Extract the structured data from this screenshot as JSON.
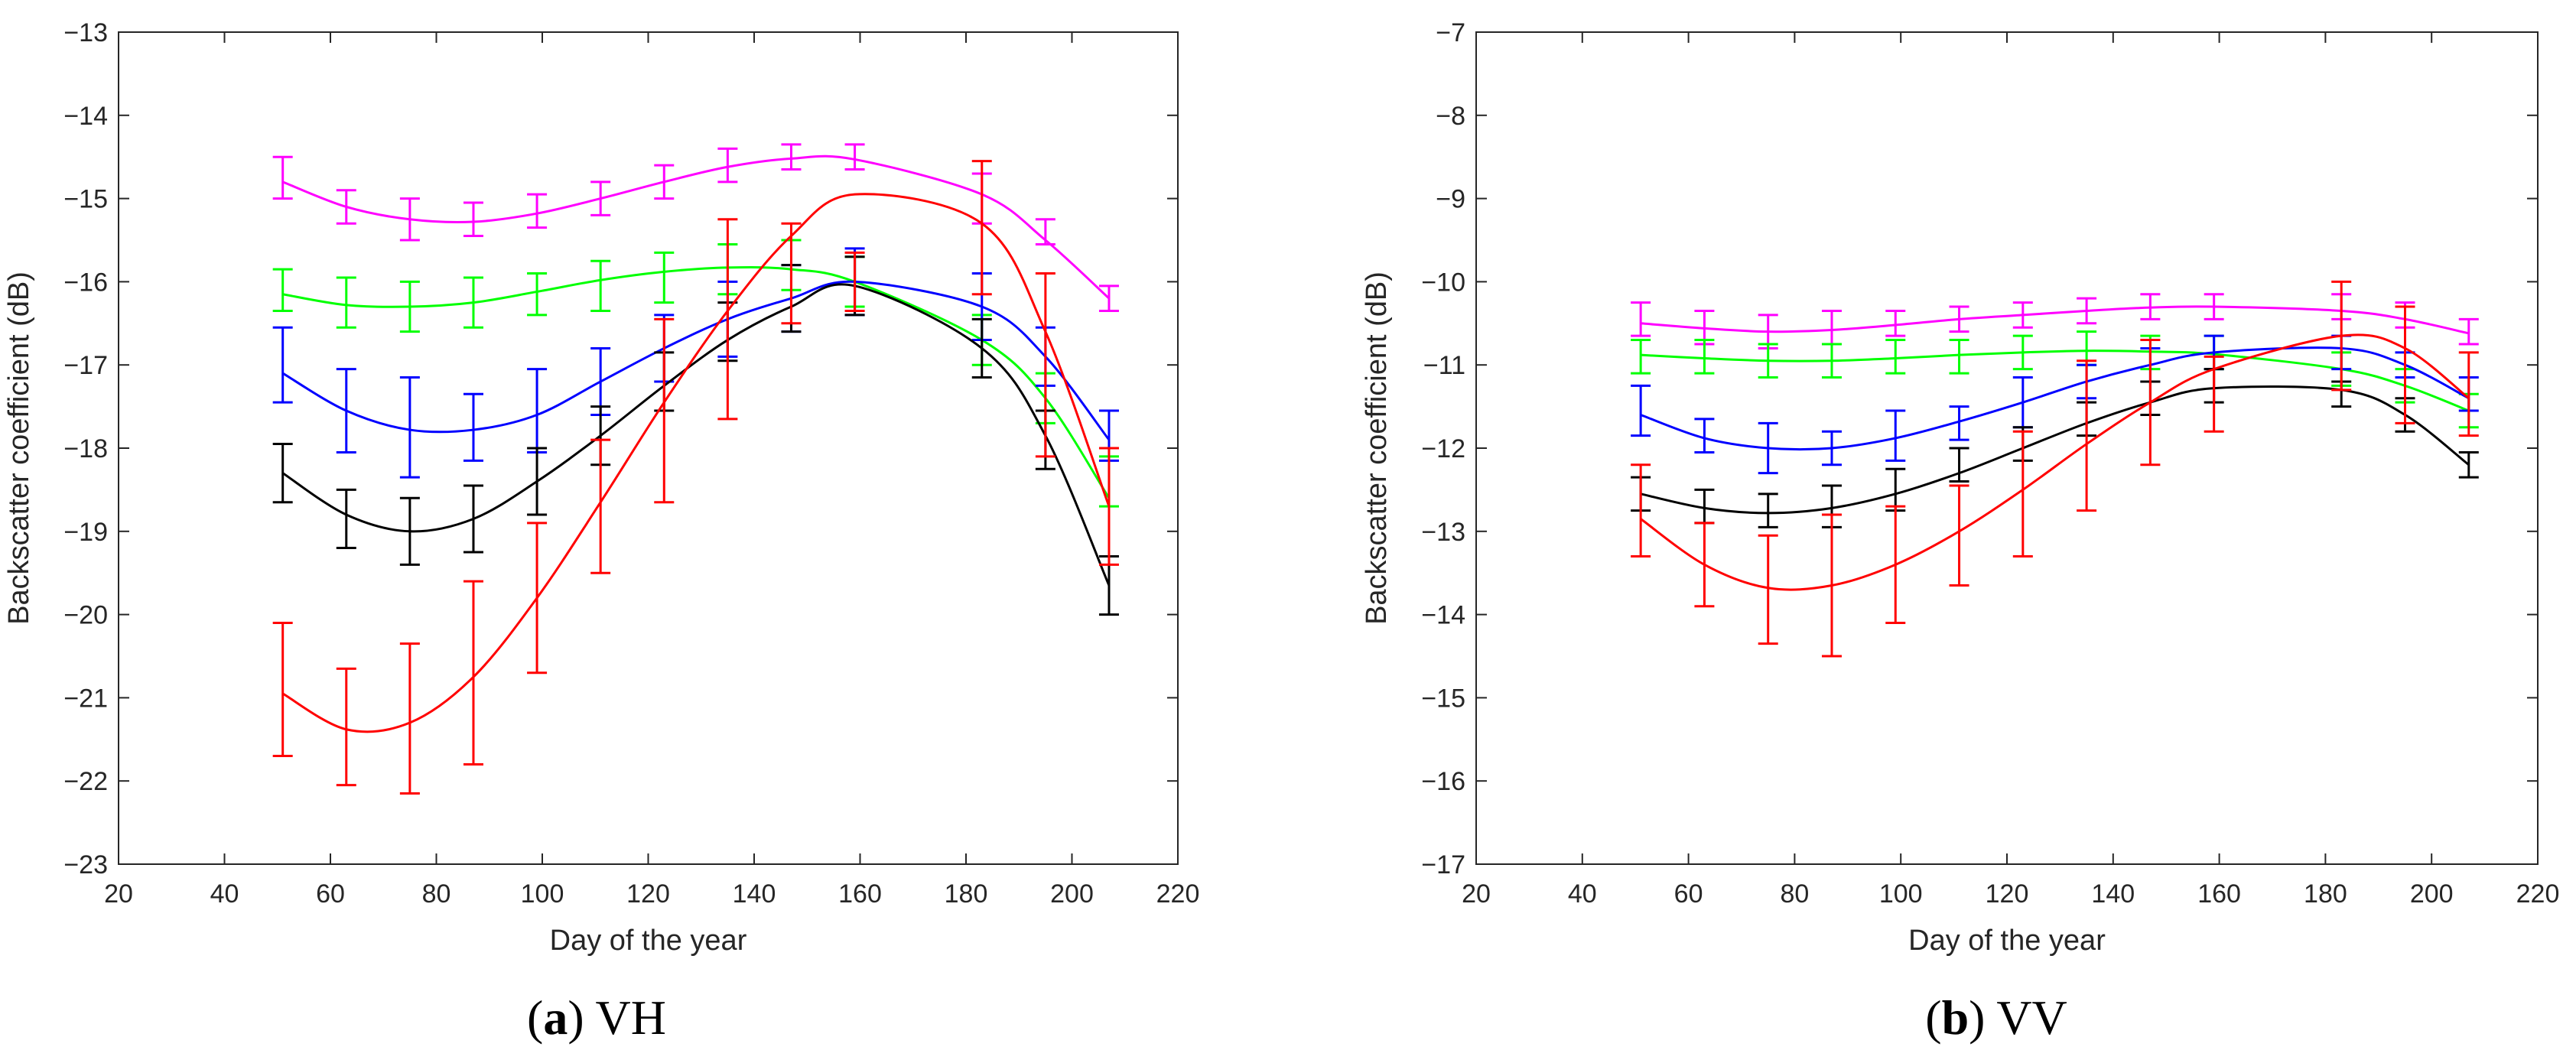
{
  "chart_data": [
    {
      "type": "line",
      "caption": {
        "letter": "a",
        "label": "VH"
      },
      "xlabel": "Day of the year",
      "ylabel": "Backscatter coefficient (dB)",
      "xlim": [
        20,
        220
      ],
      "ylim": [
        -23,
        -13
      ],
      "xticks": [
        20,
        40,
        60,
        80,
        100,
        120,
        140,
        160,
        180,
        200,
        220
      ],
      "yticks": [
        -23,
        -22,
        -21,
        -20,
        -19,
        -18,
        -17,
        -16,
        -15,
        -14,
        -13
      ],
      "x": [
        51,
        63,
        75,
        87,
        99,
        111,
        123,
        135,
        147,
        159,
        183,
        195,
        207
      ],
      "series": [
        {
          "name": "magenta",
          "color": "#ff00ff",
          "values": [
            -14.75,
            -15.1,
            -15.25,
            -15.25,
            -15.15,
            -15.0,
            -14.8,
            -14.6,
            -14.5,
            -14.5,
            -15.0,
            -15.4,
            -16.2
          ],
          "errors": [
            0.25,
            0.2,
            0.25,
            0.2,
            0.2,
            0.2,
            0.2,
            0.2,
            0.15,
            0.15,
            0.3,
            0.15,
            0.15
          ],
          "curve": [
            -14.8,
            -15.1,
            -15.25,
            -15.28,
            -15.18,
            -15.0,
            -14.8,
            -14.62,
            -14.52,
            -14.53,
            -14.95,
            -15.5,
            -16.2
          ]
        },
        {
          "name": "green",
          "color": "#00ff00",
          "values": [
            -16.1,
            -16.25,
            -16.3,
            -16.25,
            -16.15,
            -16.05,
            -15.95,
            -15.85,
            -15.8,
            -16.0,
            -16.7,
            -17.4,
            -18.4
          ],
          "errors": [
            0.25,
            0.3,
            0.3,
            0.3,
            0.25,
            0.3,
            0.3,
            0.3,
            0.3,
            0.3,
            0.3,
            0.3,
            0.3
          ],
          "curve": [
            -16.15,
            -16.28,
            -16.3,
            -16.25,
            -16.12,
            -15.98,
            -15.88,
            -15.83,
            -15.85,
            -16.0,
            -16.7,
            -17.4,
            -18.6
          ]
        },
        {
          "name": "blue",
          "color": "#0000ff",
          "values": [
            -17.0,
            -17.55,
            -17.75,
            -17.75,
            -17.55,
            -17.2,
            -16.8,
            -16.45,
            -16.2,
            -16.0,
            -16.3,
            -16.9,
            -17.85
          ],
          "errors": [
            0.45,
            0.5,
            0.6,
            0.4,
            0.5,
            0.4,
            0.4,
            0.45,
            0.4,
            0.4,
            0.4,
            0.35,
            0.3
          ],
          "curve": [
            -17.1,
            -17.55,
            -17.78,
            -17.78,
            -17.6,
            -17.2,
            -16.8,
            -16.45,
            -16.2,
            -16.0,
            -16.3,
            -16.9,
            -17.9
          ]
        },
        {
          "name": "black",
          "color": "#000000",
          "values": [
            -18.3,
            -18.85,
            -19.0,
            -18.85,
            -18.4,
            -17.85,
            -17.2,
            -16.6,
            -16.2,
            -16.05,
            -16.8,
            -17.9,
            -19.65
          ],
          "errors": [
            0.35,
            0.35,
            0.4,
            0.4,
            0.4,
            0.35,
            0.35,
            0.35,
            0.4,
            0.35,
            0.35,
            0.35,
            0.35
          ],
          "curve": [
            -18.3,
            -18.8,
            -19.0,
            -18.85,
            -18.4,
            -17.85,
            -17.25,
            -16.7,
            -16.3,
            -16.05,
            -16.8,
            -17.85,
            -19.65
          ]
        },
        {
          "name": "red",
          "color": "#ff0000",
          "values": [
            -20.9,
            -21.35,
            -21.25,
            -20.7,
            -19.8,
            -18.7,
            -17.55,
            -16.45,
            -15.9,
            -16.0,
            -15.35,
            -17.0,
            -18.7
          ],
          "errors": [
            0.8,
            0.7,
            0.9,
            1.1,
            0.9,
            0.8,
            1.1,
            1.2,
            0.6,
            0.35,
            0.8,
            1.1,
            0.7
          ],
          "curve": [
            -20.95,
            -21.38,
            -21.3,
            -20.75,
            -19.8,
            -18.65,
            -17.45,
            -16.35,
            -15.45,
            -14.95,
            -15.3,
            -16.6,
            -18.7
          ]
        }
      ]
    },
    {
      "type": "line",
      "caption": {
        "letter": "b",
        "label": "VV"
      },
      "xlabel": "Day of the year",
      "ylabel": "Backscatter coefficient (dB)",
      "xlim": [
        20,
        220
      ],
      "ylim": [
        -17,
        -7
      ],
      "xticks": [
        20,
        40,
        60,
        80,
        100,
        120,
        140,
        160,
        180,
        200,
        220
      ],
      "yticks": [
        -17,
        -16,
        -15,
        -14,
        -13,
        -12,
        -11,
        -10,
        -9,
        -8,
        -7
      ],
      "x": [
        51,
        63,
        75,
        87,
        99,
        111,
        123,
        135,
        147,
        159,
        183,
        195,
        207
      ],
      "series": [
        {
          "name": "magenta",
          "color": "#ff00ff",
          "values": [
            -10.45,
            -10.55,
            -10.6,
            -10.55,
            -10.5,
            -10.45,
            -10.4,
            -10.35,
            -10.3,
            -10.3,
            -10.3,
            -10.4,
            -10.6
          ],
          "errors": [
            0.2,
            0.2,
            0.2,
            0.2,
            0.15,
            0.15,
            0.15,
            0.15,
            0.15,
            0.15,
            0.15,
            0.15,
            0.15
          ],
          "curve": [
            -10.5,
            -10.56,
            -10.6,
            -10.58,
            -10.52,
            -10.45,
            -10.4,
            -10.35,
            -10.31,
            -10.3,
            -10.35,
            -10.45,
            -10.62
          ]
        },
        {
          "name": "green",
          "color": "#00ff00",
          "values": [
            -10.9,
            -10.9,
            -10.95,
            -10.95,
            -10.9,
            -10.9,
            -10.85,
            -10.8,
            -10.85,
            -10.85,
            -11.05,
            -11.25,
            -11.55
          ],
          "errors": [
            0.2,
            0.2,
            0.2,
            0.2,
            0.2,
            0.2,
            0.2,
            0.2,
            0.2,
            0.2,
            0.2,
            0.2,
            0.2
          ],
          "curve": [
            -10.88,
            -10.92,
            -10.95,
            -10.95,
            -10.92,
            -10.88,
            -10.85,
            -10.83,
            -10.84,
            -10.87,
            -11.05,
            -11.25,
            -11.55
          ]
        },
        {
          "name": "blue",
          "color": "#0000ff",
          "values": [
            -11.55,
            -11.85,
            -12.0,
            -12.0,
            -11.85,
            -11.7,
            -11.45,
            -11.2,
            -11.0,
            -10.85,
            -10.85,
            -11.0,
            -11.35
          ],
          "errors": [
            0.3,
            0.2,
            0.3,
            0.2,
            0.3,
            0.2,
            0.3,
            0.2,
            0.2,
            0.2,
            0.2,
            0.15,
            0.2
          ],
          "curve": [
            -11.6,
            -11.88,
            -12.0,
            -12.0,
            -11.88,
            -11.68,
            -11.45,
            -11.2,
            -11.0,
            -10.85,
            -10.8,
            -11.0,
            -11.4
          ]
        },
        {
          "name": "black",
          "color": "#000000",
          "values": [
            -12.55,
            -12.7,
            -12.75,
            -12.7,
            -12.5,
            -12.2,
            -11.95,
            -11.65,
            -11.4,
            -11.25,
            -11.35,
            -11.6,
            -12.2
          ],
          "errors": [
            0.2,
            0.2,
            0.2,
            0.25,
            0.25,
            0.2,
            0.2,
            0.2,
            0.2,
            0.2,
            0.15,
            0.2,
            0.15
          ],
          "curve": [
            -12.55,
            -12.72,
            -12.78,
            -12.72,
            -12.55,
            -12.3,
            -12.0,
            -11.7,
            -11.45,
            -11.28,
            -11.3,
            -11.6,
            -12.2
          ]
        },
        {
          "name": "red",
          "color": "#ff0000",
          "values": [
            -12.75,
            -13.4,
            -13.7,
            -13.65,
            -13.4,
            -13.05,
            -12.55,
            -11.85,
            -11.45,
            -11.35,
            -10.65,
            -11.0,
            -11.35
          ],
          "errors": [
            0.55,
            0.5,
            0.65,
            0.85,
            0.7,
            0.6,
            0.75,
            0.9,
            0.75,
            0.45,
            0.65,
            0.7,
            0.5
          ],
          "curve": [
            -12.85,
            -13.4,
            -13.68,
            -13.65,
            -13.4,
            -13.0,
            -12.5,
            -11.95,
            -11.45,
            -11.05,
            -10.65,
            -10.8,
            -11.4
          ]
        }
      ]
    }
  ]
}
